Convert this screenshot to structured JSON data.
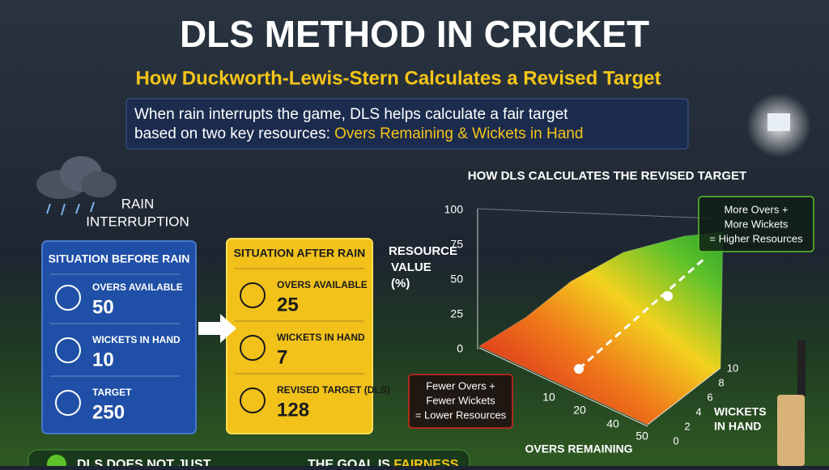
{
  "header": {
    "title": "DLS METHOD IN CRICKET",
    "subtitle": "How Duckworth-Lewis-Stern Calculates a Revised Target"
  },
  "intro": {
    "lines": [
      "When rain interrupts the game, DLS helps calculate a fair target",
      "based on two key resources:"
    ],
    "highlight": "Overs Remaining & Wickets in Hand"
  },
  "rain_label": [
    "RAIN",
    "INTERRUPTION"
  ],
  "cards": [
    {
      "title": "SITUATION BEFORE RAIN",
      "items": [
        {
          "label": "OVERS AVAILABLE",
          "value": 50
        },
        {
          "label": "WICKETS IN HAND",
          "value": 10
        },
        {
          "label": "TARGET",
          "value": 250
        }
      ]
    },
    {
      "title": "SITUATION AFTER RAIN",
      "items": [
        {
          "label": "OVERS AVAILABLE",
          "value": 25
        },
        {
          "label": "WICKETS IN HAND",
          "value": 7
        },
        {
          "label": "REVISED TARGET (DLS)",
          "value": 128
        }
      ]
    }
  ],
  "graph": {
    "title": "HOW DLS CALCULATES THE REVISED TARGET",
    "y_label": [
      "RESOURCE",
      "VALUE",
      "(%)"
    ],
    "y_ticks": [
      100,
      75,
      50,
      25,
      0
    ],
    "x_label": "OVERS REMAINING",
    "x_ticks": [
      10,
      20,
      40,
      50
    ],
    "z_label": [
      "WICKETS",
      "IN HAND"
    ],
    "z_ticks": [
      0,
      2,
      4,
      6,
      8,
      10
    ],
    "callout_high": [
      "More Overs +",
      "More Wickets",
      "= Higher Resources"
    ],
    "callout_low": [
      "Fewer Overs +",
      "Fewer Wickets",
      "= Lower Resources"
    ]
  },
  "footer": {
    "left": "DLS DOES NOT JUST",
    "right": "THE GOAL IS",
    "right_highlight": "FAIRNESS"
  }
}
